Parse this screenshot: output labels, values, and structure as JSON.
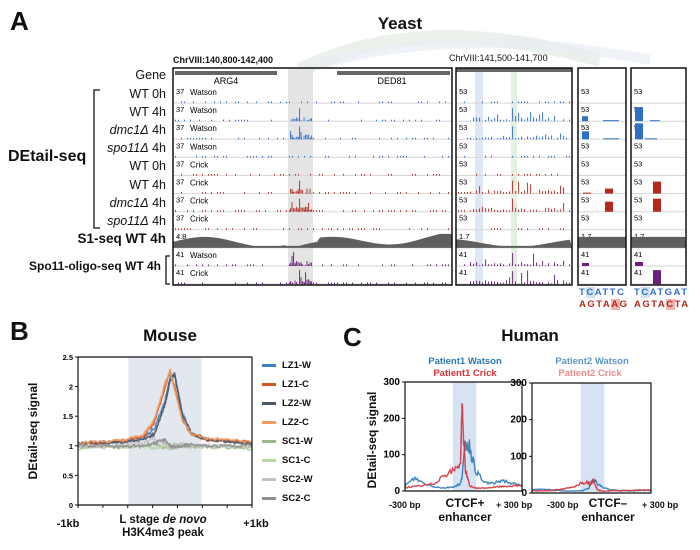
{
  "panel_a": {
    "letter": "A",
    "title": "Yeast",
    "region_wide": "ChrVIII:140,800-142,400",
    "region_zoom": "ChrVIII:141,500-141,700",
    "gene_row_label": "Gene",
    "genes": [
      "ARG4",
      "DED81"
    ],
    "group_label": "DEtail-seq",
    "tracks": [
      {
        "genotype": "WT",
        "time": "0h",
        "italic": false,
        "strand": "Watson",
        "scale_wide": "37",
        "scale_zoom": "53"
      },
      {
        "genotype": "WT",
        "time": "4h",
        "italic": false,
        "strand": "Watson",
        "scale_wide": "37",
        "scale_zoom": "53"
      },
      {
        "genotype": "dmc1Δ",
        "time": "4h",
        "italic": true,
        "strand": "Watson",
        "scale_wide": "37",
        "scale_zoom": "53"
      },
      {
        "genotype": "spo11Δ",
        "time": "4h",
        "italic": true,
        "strand": "Watson",
        "scale_wide": "37",
        "scale_zoom": "53"
      },
      {
        "genotype": "WT",
        "time": "0h",
        "italic": false,
        "strand": "Crick",
        "scale_wide": "37",
        "scale_zoom": "53"
      },
      {
        "genotype": "WT",
        "time": "4h",
        "italic": false,
        "strand": "Crick",
        "scale_wide": "37",
        "scale_zoom": "53"
      },
      {
        "genotype": "dmc1Δ",
        "time": "4h",
        "italic": true,
        "strand": "Crick",
        "scale_wide": "37",
        "scale_zoom": "53"
      },
      {
        "genotype": "spo11Δ",
        "time": "4h",
        "italic": true,
        "strand": "Crick",
        "scale_wide": "37",
        "scale_zoom": "53"
      }
    ],
    "s1_track": {
      "label": "S1-seq WT 4h",
      "scale_wide": "4.8",
      "scale_zoom": "1.7"
    },
    "oligo_track": {
      "label": "Spo11-oligo-seq WT 4h",
      "strands": [
        "Watson",
        "Crick"
      ],
      "scale": "41"
    },
    "sequences": [
      {
        "top": [
          "T",
          "C",
          "A",
          "T",
          "T",
          "C"
        ],
        "top_highlight": 1,
        "bottom": [
          "A",
          "G",
          "T",
          "A",
          "A",
          "G"
        ],
        "bottom_highlight": 4
      },
      {
        "top": [
          "T",
          "C",
          "A",
          "T",
          "G",
          "A",
          "T"
        ],
        "top_highlight": 1,
        "bottom": [
          "A",
          "G",
          "T",
          "A",
          "C",
          "T",
          "A"
        ],
        "bottom_highlight": 4
      }
    ],
    "colors": {
      "watson": "#2f6fc7",
      "crick": "#b22a1e",
      "s1": "#5f5f5f",
      "oligo": "#6b1f7a",
      "shade": "#e4e4e4"
    }
  },
  "chart_data": [
    {
      "type": "line",
      "panel": "B",
      "title": "Mouse",
      "xlabel": "L stage de novo H3K4me3 peak",
      "xlabel_parts": [
        "L stage ",
        "de novo",
        "H3K4me3 peak"
      ],
      "ylabel": "DEtail-seq signal",
      "x_tick_labels": [
        "-1kb",
        "+1kb"
      ],
      "xlim": [
        -1000,
        1000
      ],
      "ylim": [
        0,
        2.5
      ],
      "y_ticks": [
        "0",
        "0.5",
        "1",
        "1.5",
        "2",
        "2.5"
      ],
      "shaded_region": [
        -420,
        420
      ],
      "legend": "right",
      "x": [
        -1000,
        -750,
        -500,
        -250,
        -120,
        0,
        60,
        110,
        200,
        300,
        500,
        750,
        1000
      ],
      "series": [
        {
          "name": "LZ1-W",
          "color": "#3f7fc4",
          "values": [
            1.03,
            1.06,
            1.07,
            1.12,
            1.3,
            1.75,
            2.15,
            2.2,
            1.55,
            1.22,
            1.1,
            1.08,
            1.05
          ]
        },
        {
          "name": "LZ1-C",
          "color": "#d5541c",
          "values": [
            1.05,
            1.04,
            1.08,
            1.15,
            1.4,
            2.0,
            2.25,
            2.0,
            1.45,
            1.2,
            1.1,
            1.08,
            1.06
          ]
        },
        {
          "name": "LZ2-W",
          "color": "#4a5566",
          "values": [
            1.04,
            1.05,
            1.06,
            1.1,
            1.2,
            1.7,
            2.1,
            2.22,
            1.5,
            1.2,
            1.1,
            1.06,
            1.04
          ]
        },
        {
          "name": "LZ2-C",
          "color": "#f39a5e",
          "values": [
            1.06,
            1.07,
            1.09,
            1.18,
            1.45,
            2.05,
            2.27,
            1.95,
            1.45,
            1.2,
            1.12,
            1.1,
            1.06
          ]
        },
        {
          "name": "SC1-W",
          "color": "#9cb88f",
          "values": [
            0.97,
            0.99,
            1.0,
            0.98,
            1.02,
            0.97,
            0.99,
            1.01,
            1.02,
            0.98,
            1.0,
            0.97,
            0.96
          ]
        },
        {
          "name": "SC1-C",
          "color": "#b8d8a8",
          "values": [
            0.95,
            0.98,
            0.97,
            1.0,
            0.96,
            1.0,
            0.95,
            0.98,
            1.0,
            0.99,
            0.96,
            0.98,
            0.95
          ]
        },
        {
          "name": "SC2-W",
          "color": "#c4c0c4",
          "values": [
            1.0,
            0.98,
            1.02,
            1.05,
            1.12,
            1.02,
            0.98,
            1.0,
            1.03,
            1.0,
            1.01,
            0.99,
            1.0
          ]
        },
        {
          "name": "SC2-C",
          "color": "#8f8f8f",
          "values": [
            1.01,
            1.0,
            0.98,
            1.0,
            1.05,
            1.1,
            1.0,
            0.97,
            1.0,
            1.02,
            0.99,
            1.0,
            1.01
          ]
        }
      ]
    },
    {
      "type": "line",
      "panel": "C",
      "title": "Human",
      "xlabel": "CTCF+ enhancer",
      "xlabel_lines": [
        "CTCF+",
        "enhancer"
      ],
      "ylabel": "DEtail-seq signal",
      "x_tick_labels": [
        "-300 bp",
        "+ 300 bp"
      ],
      "xlim": [
        -300,
        300
      ],
      "ylim": [
        0,
        300
      ],
      "y_ticks": [
        "0",
        "100",
        "200",
        "300"
      ],
      "shaded_region": [
        -55,
        65
      ],
      "legend": "top",
      "x": [
        -300,
        -250,
        -200,
        -150,
        -100,
        -50,
        -15,
        -8,
        10,
        30,
        60,
        100,
        150,
        200,
        250,
        300
      ],
      "series": [
        {
          "name": "Patient1 Watson",
          "color": "#2a78b8",
          "values": [
            15,
            35,
            20,
            12,
            8,
            12,
            20,
            40,
            130,
            125,
            60,
            25,
            20,
            30,
            20,
            15
          ]
        },
        {
          "name": "Patient1 Crick",
          "color": "#d8323e",
          "values": [
            10,
            12,
            15,
            20,
            45,
            55,
            80,
            230,
            60,
            15,
            8,
            8,
            10,
            12,
            14,
            15
          ]
        }
      ]
    },
    {
      "type": "line",
      "panel": "C",
      "xlabel": "CTCF– enhancer",
      "xlabel_lines": [
        "CTCF–",
        "enhancer"
      ],
      "x_tick_labels": [
        "-300 bp",
        "+ 300 bp"
      ],
      "xlim": [
        -300,
        300
      ],
      "ylim": [
        0,
        300
      ],
      "y_ticks": [
        "0",
        "100",
        "200",
        "300"
      ],
      "shaded_region": [
        -55,
        65
      ],
      "legend": "top",
      "x": [
        -300,
        -250,
        -200,
        -150,
        -100,
        -50,
        -15,
        -8,
        10,
        30,
        60,
        100,
        150,
        200,
        250,
        300
      ],
      "series": [
        {
          "name": "Patient2 Watson",
          "color": "#2a78b8",
          "label_color": "#5b95cc",
          "values": [
            10,
            10,
            8,
            6,
            5,
            6,
            12,
            20,
            40,
            25,
            15,
            8,
            6,
            6,
            7,
            8
          ]
        },
        {
          "name": "Patient2 Crick",
          "color": "#d8323e",
          "label_color": "#ef8a8a",
          "values": [
            6,
            6,
            7,
            10,
            15,
            28,
            30,
            25,
            35,
            8,
            5,
            6,
            7,
            7,
            8,
            8
          ]
        }
      ]
    }
  ]
}
